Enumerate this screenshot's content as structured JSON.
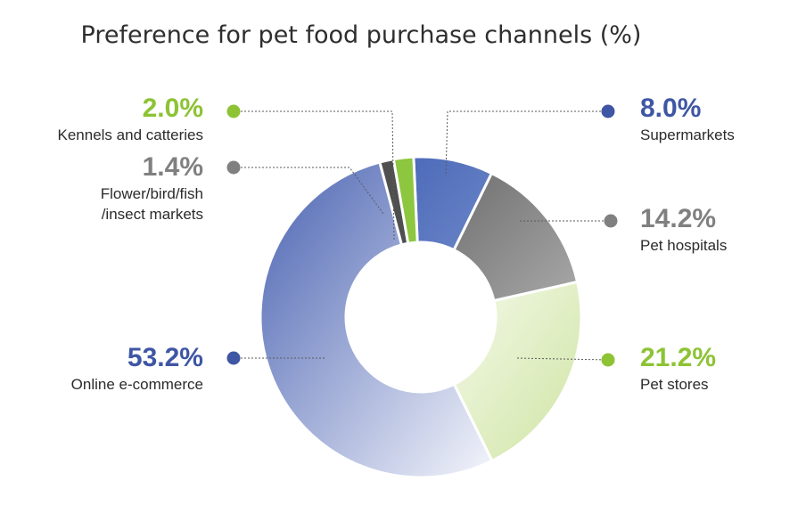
{
  "chart_data": {
    "type": "donut",
    "title": "Preference for pet food purchase channels (%)",
    "unit": "%",
    "slices": [
      {
        "label": "Supermarkets",
        "value": 8.0,
        "value_label": "8.0%",
        "color": "#4561AE",
        "label_color": "#3F56A4",
        "side": "right"
      },
      {
        "label": "Pet hospitals",
        "value": 14.2,
        "value_label": "14.2%",
        "color": "#8E8E8E",
        "label_color": "#808080",
        "side": "right"
      },
      {
        "label": "Pet stores",
        "value": 21.2,
        "value_label": "21.2%",
        "color": "#D2E5A9",
        "label_color": "#8DC334",
        "side": "right"
      },
      {
        "label": "Online e-commerce",
        "value": 53.2,
        "value_label": "53.2%",
        "color": "#7F8FCC",
        "label_color": "#3F56A4",
        "side": "left"
      },
      {
        "label": "Flower/bird/fish\n/insect markets",
        "value": 1.4,
        "value_label": "1.4%",
        "color": "#4F4F4F",
        "label_color": "#808080",
        "side": "left"
      },
      {
        "label": "Kennels and catteries",
        "value": 2.0,
        "value_label": "2.0%",
        "color": "#8DC63F",
        "label_color": "#8DC334",
        "side": "left"
      }
    ],
    "legend": "none"
  }
}
